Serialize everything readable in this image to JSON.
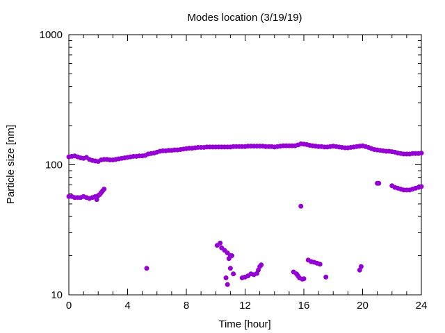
{
  "chart_data": {
    "type": "scatter",
    "title": "Modes location (3/19/19)",
    "xlabel": "Time [hour]",
    "ylabel": "Particle size [nm]",
    "xlim": [
      0,
      24
    ],
    "ylim": [
      10,
      1000
    ],
    "y_scale": "log",
    "x_ticks": [
      0,
      4,
      8,
      12,
      16,
      20,
      24
    ],
    "x_tick_labels": [
      "0",
      "4",
      "8",
      "12",
      "16",
      "20",
      "24"
    ],
    "y_ticks": [
      10,
      100,
      1000
    ],
    "y_tick_labels": [
      "10",
      "100",
      "1000"
    ],
    "grid": false,
    "legend": false,
    "marker_color": "#9400D3",
    "series": [
      {
        "values": [
          [
            0.0,
            115
          ],
          [
            0.2,
            116
          ],
          [
            0.4,
            117
          ],
          [
            0.6,
            115
          ],
          [
            0.8,
            113
          ],
          [
            1.0,
            112
          ],
          [
            1.2,
            114
          ],
          [
            1.4,
            110
          ],
          [
            1.6,
            108
          ],
          [
            1.8,
            107
          ],
          [
            2.0,
            106
          ],
          [
            2.2,
            109
          ],
          [
            2.4,
            110
          ],
          [
            2.6,
            110
          ],
          [
            2.8,
            109
          ],
          [
            3.0,
            109
          ],
          [
            3.2,
            110
          ],
          [
            3.4,
            111
          ],
          [
            3.6,
            112
          ],
          [
            3.8,
            113
          ],
          [
            4.0,
            114
          ],
          [
            4.2,
            115
          ],
          [
            4.4,
            116
          ],
          [
            4.6,
            116
          ],
          [
            4.8,
            117
          ],
          [
            5.0,
            117
          ],
          [
            5.2,
            118
          ],
          [
            5.4,
            121
          ],
          [
            5.6,
            122
          ],
          [
            5.8,
            123
          ],
          [
            6.0,
            125
          ],
          [
            6.2,
            127
          ],
          [
            6.4,
            128
          ],
          [
            6.6,
            128
          ],
          [
            6.8,
            129
          ],
          [
            7.0,
            129
          ],
          [
            7.2,
            130
          ],
          [
            7.4,
            130
          ],
          [
            7.6,
            131
          ],
          [
            7.8,
            132
          ],
          [
            8.0,
            133
          ],
          [
            8.2,
            134
          ],
          [
            8.4,
            134
          ],
          [
            8.6,
            135
          ],
          [
            8.8,
            136
          ],
          [
            9.0,
            136
          ],
          [
            9.2,
            136
          ],
          [
            9.4,
            137
          ],
          [
            9.6,
            137
          ],
          [
            9.8,
            137
          ],
          [
            10.0,
            137
          ],
          [
            10.2,
            137
          ],
          [
            10.4,
            137
          ],
          [
            10.6,
            137
          ],
          [
            10.8,
            137
          ],
          [
            11.0,
            137
          ],
          [
            11.2,
            138
          ],
          [
            11.4,
            138
          ],
          [
            11.6,
            138
          ],
          [
            11.8,
            138
          ],
          [
            12.0,
            138
          ],
          [
            12.2,
            139
          ],
          [
            12.4,
            139
          ],
          [
            12.6,
            139
          ],
          [
            12.8,
            139
          ],
          [
            13.0,
            139
          ],
          [
            13.2,
            139
          ],
          [
            13.4,
            138
          ],
          [
            13.6,
            138
          ],
          [
            13.8,
            138
          ],
          [
            14.0,
            137
          ],
          [
            14.2,
            138
          ],
          [
            14.4,
            139
          ],
          [
            14.6,
            140
          ],
          [
            14.8,
            140
          ],
          [
            15.0,
            140
          ],
          [
            15.2,
            140
          ],
          [
            15.4,
            140
          ],
          [
            15.6,
            142
          ],
          [
            15.8,
            145
          ],
          [
            16.0,
            144
          ],
          [
            16.2,
            143
          ],
          [
            16.4,
            141
          ],
          [
            16.6,
            140
          ],
          [
            16.8,
            139
          ],
          [
            17.0,
            138
          ],
          [
            17.2,
            138
          ],
          [
            17.4,
            137
          ],
          [
            17.6,
            137
          ],
          [
            17.8,
            138
          ],
          [
            18.0,
            139
          ],
          [
            18.2,
            138
          ],
          [
            18.4,
            137
          ],
          [
            18.6,
            136
          ],
          [
            18.8,
            135
          ],
          [
            19.0,
            135
          ],
          [
            19.2,
            136
          ],
          [
            19.4,
            137
          ],
          [
            19.6,
            138
          ],
          [
            19.8,
            139
          ],
          [
            20.0,
            140
          ],
          [
            20.2,
            138
          ],
          [
            20.4,
            136
          ],
          [
            20.6,
            133
          ],
          [
            20.8,
            131
          ],
          [
            21.0,
            130
          ],
          [
            21.2,
            129
          ],
          [
            21.4,
            128
          ],
          [
            21.6,
            127
          ],
          [
            21.8,
            127
          ],
          [
            22.0,
            126
          ],
          [
            22.2,
            125
          ],
          [
            22.4,
            123
          ],
          [
            22.6,
            122
          ],
          [
            22.8,
            121
          ],
          [
            23.0,
            121
          ],
          [
            23.2,
            121
          ],
          [
            23.4,
            122
          ],
          [
            23.6,
            122
          ],
          [
            23.8,
            122
          ],
          [
            24.0,
            123
          ]
        ]
      },
      {
        "values": [
          [
            0.0,
            57
          ],
          [
            0.2,
            57
          ],
          [
            0.4,
            56
          ],
          [
            0.6,
            56
          ],
          [
            0.8,
            56
          ],
          [
            1.0,
            57
          ],
          [
            1.2,
            56
          ],
          [
            1.4,
            55
          ],
          [
            1.6,
            56
          ],
          [
            1.8,
            57
          ],
          [
            1.9,
            54
          ],
          [
            2.0,
            58
          ],
          [
            2.1,
            59
          ],
          [
            2.2,
            61
          ],
          [
            2.3,
            63
          ],
          [
            2.4,
            65
          ],
          [
            21.0,
            72
          ],
          [
            21.1,
            72
          ],
          [
            22.0,
            69
          ],
          [
            22.2,
            67
          ],
          [
            22.4,
            66
          ],
          [
            22.6,
            65
          ],
          [
            22.8,
            64
          ],
          [
            23.0,
            64
          ],
          [
            23.2,
            64
          ],
          [
            23.4,
            65
          ],
          [
            23.6,
            66
          ],
          [
            23.8,
            67
          ],
          [
            24.0,
            68
          ]
        ]
      },
      {
        "values": [
          [
            5.3,
            16
          ],
          [
            15.8,
            48
          ],
          [
            10.1,
            24
          ],
          [
            10.3,
            25
          ],
          [
            10.4,
            23
          ],
          [
            10.6,
            22
          ],
          [
            10.8,
            21
          ],
          [
            10.9,
            19
          ],
          [
            11.0,
            20
          ],
          [
            11.1,
            20
          ],
          [
            11.0,
            16
          ],
          [
            10.7,
            13.5
          ],
          [
            10.8,
            12
          ],
          [
            11.2,
            14.5
          ],
          [
            11.8,
            13.5
          ],
          [
            12.0,
            13.7
          ],
          [
            12.2,
            14
          ],
          [
            12.4,
            14.5
          ],
          [
            12.6,
            14.3
          ],
          [
            12.8,
            14.6
          ],
          [
            12.9,
            15.5
          ],
          [
            13.0,
            16.5
          ],
          [
            13.1,
            17
          ],
          [
            15.3,
            15
          ],
          [
            15.5,
            14.5
          ],
          [
            15.6,
            14
          ],
          [
            15.7,
            13.5
          ],
          [
            15.9,
            13.2
          ],
          [
            16.0,
            13.3
          ],
          [
            16.3,
            18.5
          ],
          [
            16.5,
            18
          ],
          [
            16.7,
            17.8
          ],
          [
            16.9,
            17.5
          ],
          [
            17.1,
            17.2
          ],
          [
            17.5,
            13.7
          ],
          [
            19.8,
            15.5
          ],
          [
            19.9,
            16.5
          ]
        ]
      }
    ]
  }
}
